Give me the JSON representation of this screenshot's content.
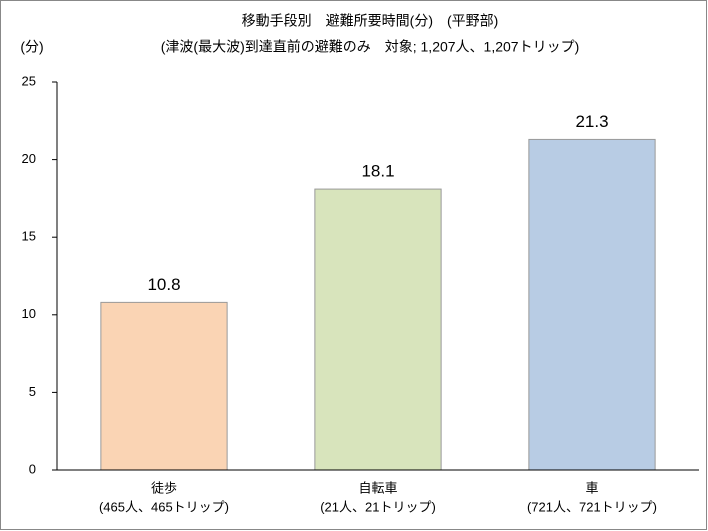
{
  "chart_data": {
    "type": "bar",
    "title": "移動手段別　避難所要時間(分)　(平野部)",
    "subtitle": "(津波(最大波)到達直前の避難のみ　対象; 1,207人、1,207トリップ)",
    "y_axis_label": "(分)",
    "categories": [
      "徒歩",
      "自転車",
      "車"
    ],
    "category_sublabels": [
      "(465人、465トリップ)",
      "(21人、21トリップ)",
      "(721人、721トリップ)"
    ],
    "values": [
      10.8,
      18.1,
      21.3
    ],
    "colors": [
      "#fad4b4",
      "#d8e4bc",
      "#b8cce4"
    ],
    "ylim": [
      0,
      25
    ],
    "yticks": [
      0,
      5,
      10,
      15,
      20,
      25
    ],
    "grid": false
  }
}
